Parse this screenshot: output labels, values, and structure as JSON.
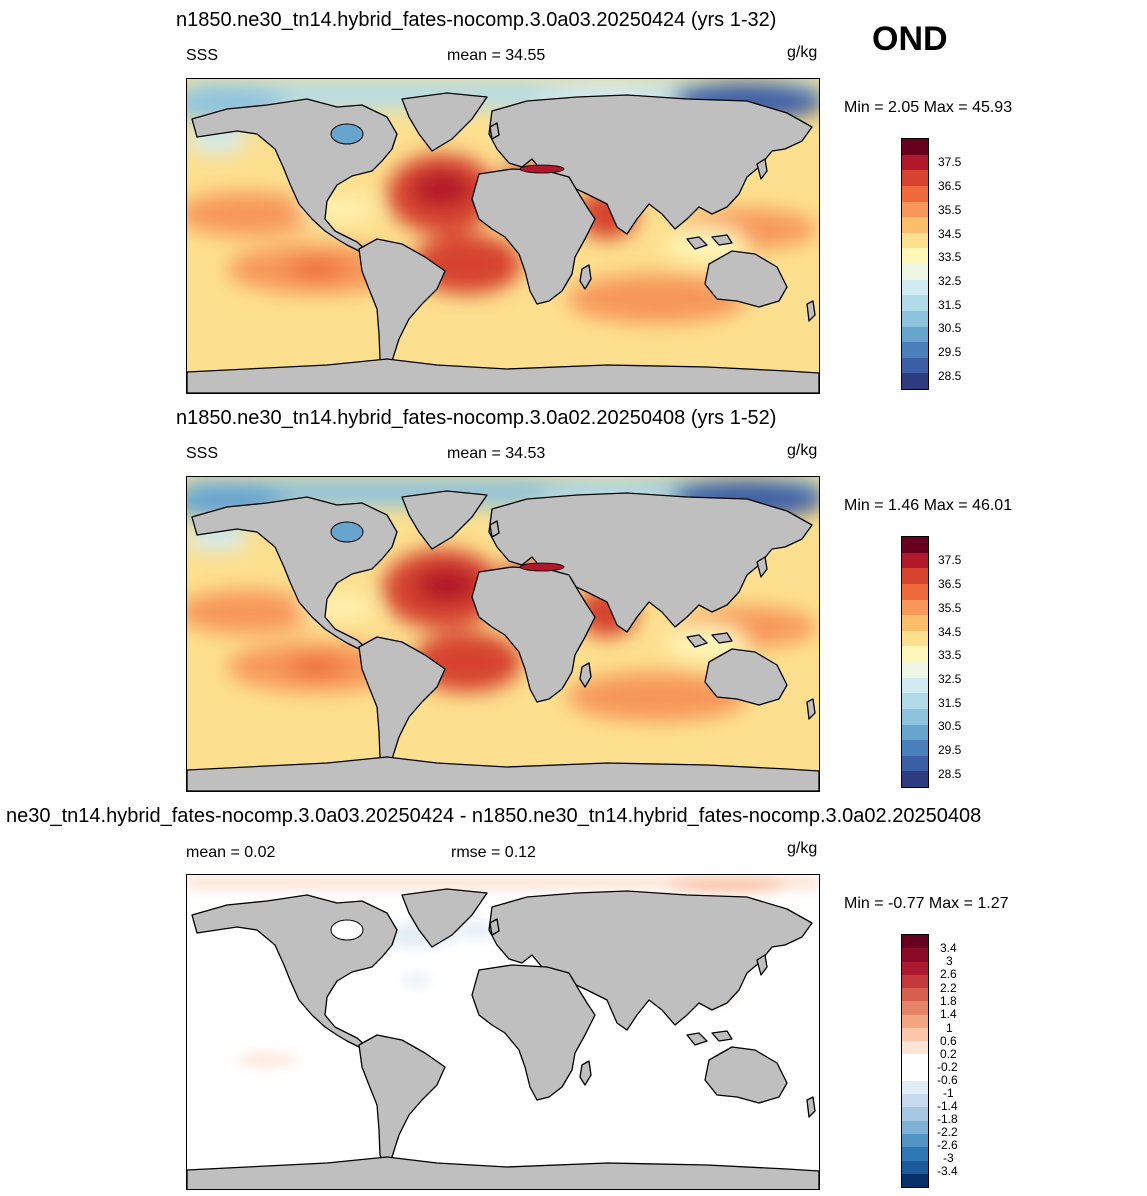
{
  "season": "OND",
  "units": "g/kg",
  "panels": [
    {
      "title": "n1850.ne30_tn14.hybrid_fates-nocomp.3.0a03.20250424 (yrs 1-32)",
      "left_label": "SSS",
      "stat1_label": "mean =",
      "stat1_value": "34.55",
      "minmax": "Min =   2.05 Max =  45.93",
      "kind": "abs"
    },
    {
      "title": "n1850.ne30_tn14.hybrid_fates-nocomp.3.0a02.20250408 (yrs 1-52)",
      "left_label": "SSS",
      "stat1_label": "mean =",
      "stat1_value": "34.53",
      "minmax": "Min =   1.46 Max =  46.01",
      "kind": "abs"
    },
    {
      "title": "ne30_tn14.hybrid_fates-nocomp.3.0a03.20250424 - n1850.ne30_tn14.hybrid_fates-nocomp.3.0a02.20250408",
      "left_label": "mean =   0.02",
      "stat1_label": "rmse =",
      "stat1_value": "0.12",
      "minmax": "Min =  -0.77 Max =   1.27",
      "kind": "diff"
    }
  ],
  "abs_colorbar": {
    "ticks": [
      "37.5",
      "36.5",
      "35.5",
      "34.5",
      "33.5",
      "32.5",
      "31.5",
      "30.5",
      "29.5",
      "28.5"
    ],
    "colors": [
      "#67001f",
      "#b2182b",
      "#d6432f",
      "#ef6b3c",
      "#f7975a",
      "#fbbf6b",
      "#fde08f",
      "#fff6b9",
      "#eef7e6",
      "#d2ebf2",
      "#b2dbe9",
      "#8ec3dd",
      "#67a5cf",
      "#4a81bd",
      "#3c5ea5",
      "#2f3b81"
    ]
  },
  "diff_colorbar": {
    "ticks": [
      "3.4",
      "3",
      "2.6",
      "2.2",
      "1.8",
      "1.4",
      "1",
      "0.6",
      "0.2",
      "-0.2",
      "-0.6",
      "-1",
      "-1.4",
      "-1.8",
      "-2.2",
      "-2.6",
      "-3",
      "-3.4"
    ],
    "colors": [
      "#67001f",
      "#8b0a26",
      "#ac1a2f",
      "#c43a3c",
      "#d6604d",
      "#e58468",
      "#f4a582",
      "#fbc6aa",
      "#fde4d5",
      "#ffffff",
      "#ffffff",
      "#e2eef6",
      "#c6dbef",
      "#a7c8e2",
      "#7fb0d6",
      "#5193c5",
      "#2f77b5",
      "#1b5a9b",
      "#08306b"
    ]
  }
}
